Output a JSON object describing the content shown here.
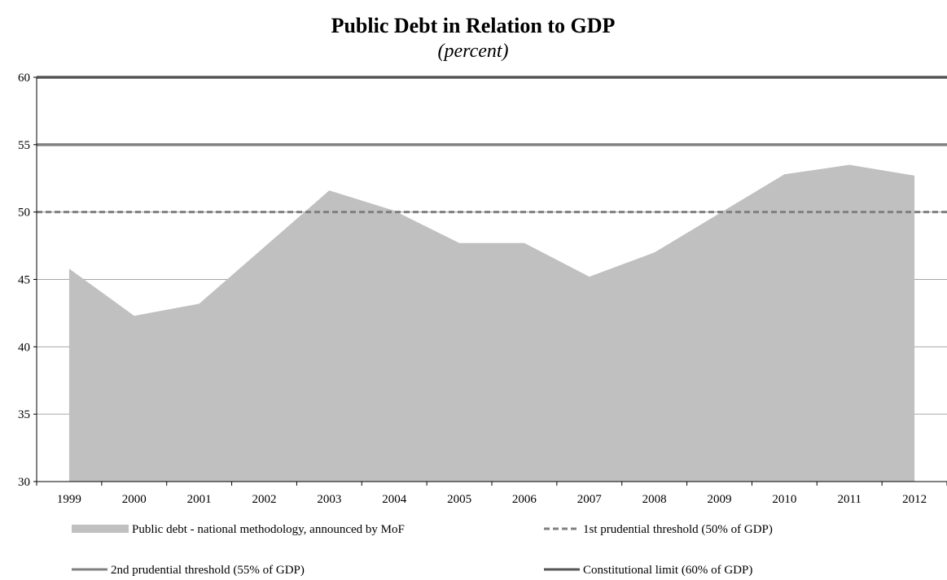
{
  "chart_data": {
    "type": "area",
    "title": "Public Debt in Relation to GDP",
    "subtitle": "(percent)",
    "xlabel": "",
    "ylabel": "",
    "ylim": [
      30,
      60
    ],
    "yticks": [
      30,
      35,
      40,
      45,
      50,
      55,
      60
    ],
    "categories": [
      "1999",
      "2000",
      "2001",
      "2002",
      "2003",
      "2004",
      "2005",
      "2006",
      "2007",
      "2008",
      "2009",
      "2010",
      "2011",
      "2012"
    ],
    "grid": true,
    "legend_position": "bottom",
    "series": [
      {
        "name": "Public debt - national methodology, announced by MoF",
        "kind": "area",
        "color": "#c0c0c0",
        "values": [
          45.8,
          42.3,
          43.2,
          47.4,
          51.6,
          50.1,
          47.7,
          47.7,
          45.2,
          47.0,
          49.9,
          52.8,
          53.5,
          52.7
        ]
      },
      {
        "name": "1st prudential threshold (50% of GDP)",
        "kind": "line-dashed",
        "color": "#808080",
        "values": [
          50,
          50,
          50,
          50,
          50,
          50,
          50,
          50,
          50,
          50,
          50,
          50,
          50,
          50
        ]
      },
      {
        "name": "2nd prudential threshold (55% of GDP)",
        "kind": "line",
        "color": "#808080",
        "values": [
          55,
          55,
          55,
          55,
          55,
          55,
          55,
          55,
          55,
          55,
          55,
          55,
          55,
          55
        ]
      },
      {
        "name": "Constitutional limit (60% of GDP)",
        "kind": "line",
        "color": "#555555",
        "values": [
          60,
          60,
          60,
          60,
          60,
          60,
          60,
          60,
          60,
          60,
          60,
          60,
          60,
          60
        ]
      }
    ]
  }
}
